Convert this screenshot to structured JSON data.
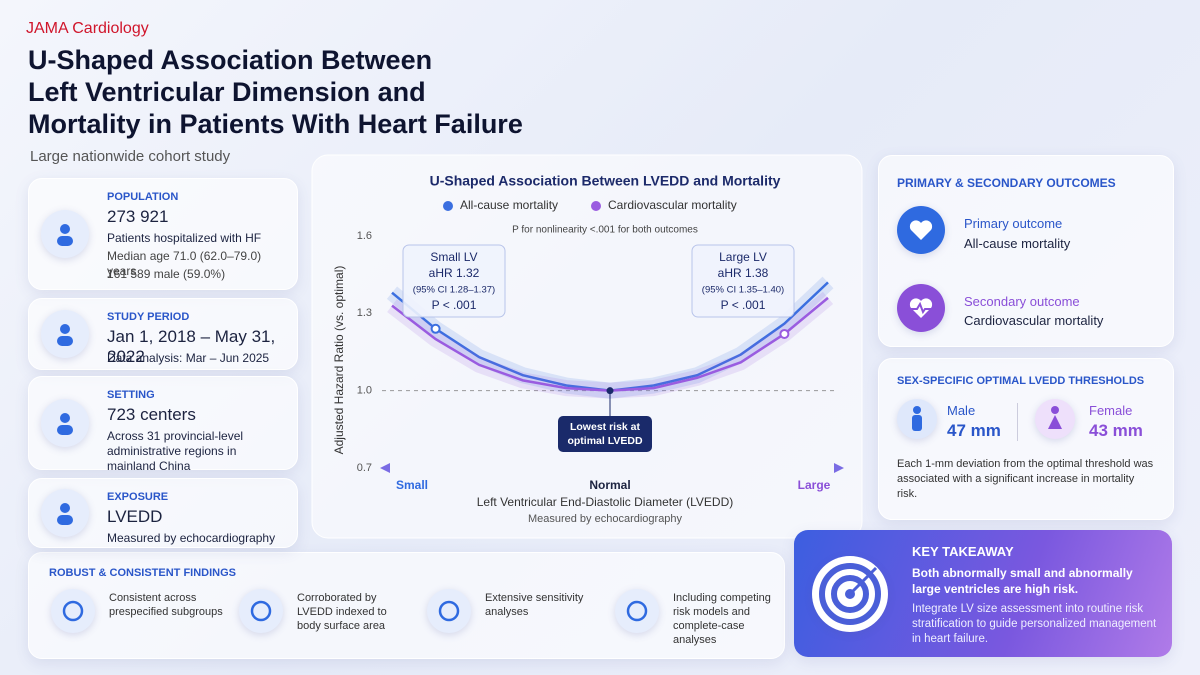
{
  "header": {
    "journal": "JAMA Cardiology",
    "title_lines": [
      "U-Shaped Association Between",
      "Left Ventricular Dimension and",
      "Mortality in Patients With Heart Failure"
    ],
    "subtitle": "Large nationwide cohort study"
  },
  "cards": [
    {
      "label": "POPULATION",
      "value": "273 921",
      "lines": [
        "Patients hospitalized with HF",
        "Median age 71.0 (62.0–79.0) years",
        "161 589 male (59.0%)"
      ]
    },
    {
      "label": "STUDY PERIOD",
      "value": "Jan 1, 2018 – May 31, 2022",
      "lines": [
        "Data analysis: Mar – Jun 2025"
      ]
    },
    {
      "label": "SETTING",
      "value": "723 centers",
      "lines": [
        "Across 31 provincial-level administrative regions in mainland China"
      ]
    },
    {
      "label": "EXPOSURE",
      "value": "LVEDD",
      "lines": [
        "Measured by echocardiography"
      ]
    }
  ],
  "chart_data": {
    "type": "line",
    "title": "U-Shaped Association Between LVEDD and Mortality",
    "subtitle": "P for nonlinearity <.001 for both outcomes",
    "ylabel": "Adjusted Hazard Ratio (vs. optimal)",
    "xlabel": "Left Ventricular End-Diastolic Diameter (LVEDD)",
    "xlabel_note": "Measured by echocardiography",
    "categories": [
      "Small",
      null,
      null,
      null,
      null,
      "Normal",
      null,
      null,
      null,
      null,
      "Large"
    ],
    "series": [
      {
        "name": "All-cause mortality",
        "color": "#3b6fe0",
        "values": [
          1.38,
          1.24,
          1.13,
          1.06,
          1.02,
          1.0,
          1.02,
          1.06,
          1.14,
          1.26,
          1.42
        ]
      },
      {
        "name": "Cardiovascular mortality",
        "color": "#9a5ce0",
        "values": [
          1.33,
          1.2,
          1.1,
          1.04,
          1.01,
          1.0,
          1.01,
          1.05,
          1.11,
          1.22,
          1.36
        ]
      }
    ],
    "ylim": [
      0.7,
      1.6
    ],
    "yticks": [
      0.7,
      {
        "value": 1,
        "label": "1.0"
      },
      1.3,
      1.6
    ],
    "annotations": [
      [
        "Small LV",
        "aHR 1.32",
        "(95% CI 1.28–1.37)",
        "P < .001"
      ],
      [
        "Large LV",
        "aHR 1.38",
        "(95% CI 1.35–1.40)",
        "P < .001"
      ]
    ],
    "callout": [
      "Lowest risk at",
      "optimal LVEDD"
    ]
  },
  "outcomes": {
    "title": "PRIMARY & SECONDARY OUTCOMES",
    "items": [
      {
        "label": "Primary outcome",
        "text": "All-cause mortality"
      },
      {
        "label": "Secondary outcome",
        "text": "Cardiovascular mortality"
      }
    ]
  },
  "thresholds": {
    "title": "SEX-SPECIFIC OPTIMAL LVEDD THRESHOLDS",
    "items": [
      {
        "label": "Male",
        "value": "47 mm"
      },
      {
        "label": "Female",
        "value": "43 mm"
      }
    ],
    "note": "Each 1-mm deviation from the optimal threshold was associated with a significant increase in mortality risk."
  },
  "findings": {
    "title": "ROBUST & CONSISTENT FINDINGS",
    "items": [
      "Consistent across prespecified subgroups",
      "Corroborated by LVEDD indexed to body surface area",
      "Extensive sensitivity analyses",
      "Including competing risk models and complete-case analyses"
    ]
  },
  "takeaway": {
    "title": "KEY TAKEAWAY",
    "headline": "Both abnormally small and abnormally large ventricles are high risk.",
    "text": "Integrate LV size assessment into routine risk stratification to guide personalized management in heart failure."
  }
}
